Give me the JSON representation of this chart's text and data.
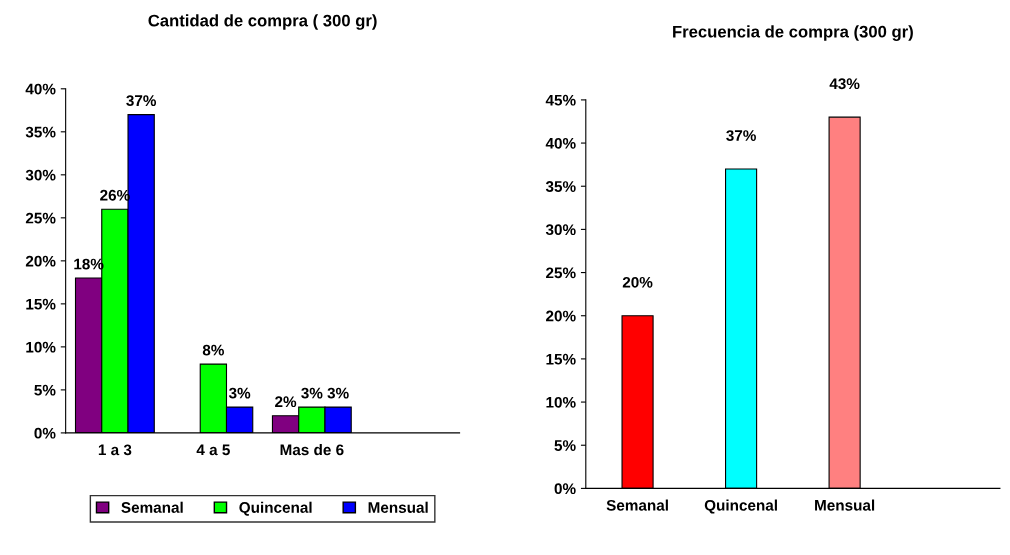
{
  "chart_data": [
    {
      "type": "bar",
      "title": "Cantidad de compra ( 300 gr)",
      "categories": [
        "1 a 3",
        "4 a 5",
        "Mas de 6"
      ],
      "series": [
        {
          "name": "Semanal",
          "color": "#800080",
          "values": [
            18,
            null,
            2
          ],
          "value_labels": [
            "18%",
            null,
            "2%"
          ]
        },
        {
          "name": "Quincenal",
          "color": "#00ff00",
          "values": [
            26,
            8,
            3
          ],
          "value_labels": [
            "26%",
            "8%",
            "3%"
          ]
        },
        {
          "name": "Mensual",
          "color": "#0000ff",
          "values": [
            37,
            3,
            3
          ],
          "value_labels": [
            "37%",
            "3%",
            "3%"
          ]
        }
      ],
      "ylim": [
        0,
        40
      ],
      "yticks": [
        {
          "value": 0,
          "label": "0%"
        },
        {
          "value": 5,
          "label": "5%"
        },
        {
          "value": 10,
          "label": "10%"
        },
        {
          "value": 15,
          "label": "15%"
        },
        {
          "value": 20,
          "label": "20%"
        },
        {
          "value": 25,
          "label": "25%"
        },
        {
          "value": 30,
          "label": "30%"
        },
        {
          "value": 35,
          "label": "35%"
        },
        {
          "value": 40,
          "label": "40%"
        }
      ],
      "grid": false,
      "legend": "bottom"
    },
    {
      "type": "bar",
      "title": "Frecuencia de compra (300 gr)",
      "categories": [
        "Semanal",
        "Quincenal",
        "Mensual"
      ],
      "values": [
        20,
        37,
        43
      ],
      "colors": [
        "#ff0000",
        "#00ffff",
        "#ff8080"
      ],
      "value_labels": [
        "20%",
        "37%",
        "43%"
      ],
      "ylim": [
        0,
        45
      ],
      "yticks": [
        {
          "value": 0,
          "label": "0%"
        },
        {
          "value": 5,
          "label": "5%"
        },
        {
          "value": 10,
          "label": "10%"
        },
        {
          "value": 15,
          "label": "15%"
        },
        {
          "value": 20,
          "label": "20%"
        },
        {
          "value": 25,
          "label": "25%"
        },
        {
          "value": 30,
          "label": "30%"
        },
        {
          "value": 35,
          "label": "35%"
        },
        {
          "value": 40,
          "label": "40%"
        },
        {
          "value": 45,
          "label": "45%"
        }
      ],
      "grid": false
    }
  ]
}
